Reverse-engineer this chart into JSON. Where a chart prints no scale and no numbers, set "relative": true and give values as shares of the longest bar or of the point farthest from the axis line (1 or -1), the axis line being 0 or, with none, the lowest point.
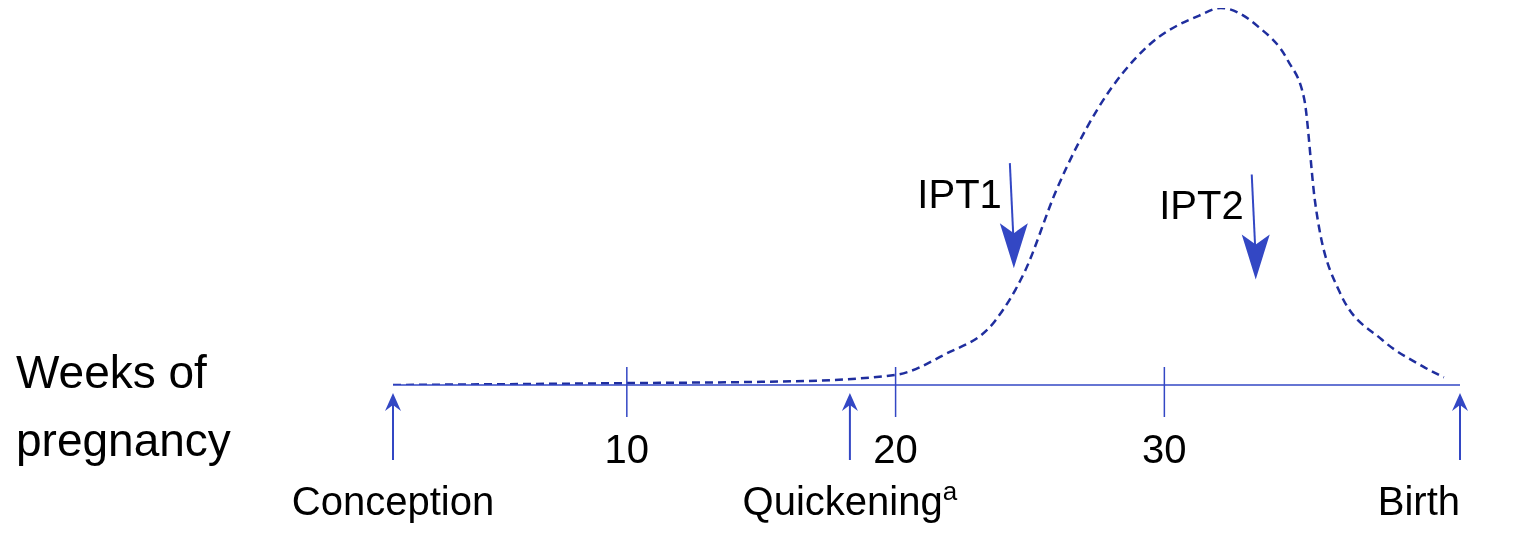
{
  "chart_data": {
    "type": "line",
    "relative": true,
    "xlabel": "Weeks of pregnancy",
    "x": [
      1.3,
      10,
      16.3,
      20,
      21.8,
      23.7,
      24.8,
      26.0,
      27.5,
      29.4,
      31.3,
      32.1,
      33.5,
      34.6,
      35.2,
      35.6,
      36.5,
      38.1,
      39.6,
      40.4
    ],
    "series": [
      {
        "color": "#1f2e9e",
        "line_style": "dashed",
        "values": [
          0,
          0.005,
          0.01,
          0.027,
          0.08,
          0.17,
          0.3,
          0.52,
          0.73,
          0.9,
          0.98,
          1,
          0.95,
          0.86,
          0.76,
          0.49,
          0.25,
          0.12,
          0.05,
          0.02
        ]
      }
    ],
    "xlim": [
      1.3,
      41
    ],
    "xticks": [
      10,
      20,
      30
    ],
    "marker": "none",
    "annotations": [
      "Conception",
      "Quickening$^{a}$",
      "Birth",
      "IPT1",
      "IPT2"
    ]
  }
}
